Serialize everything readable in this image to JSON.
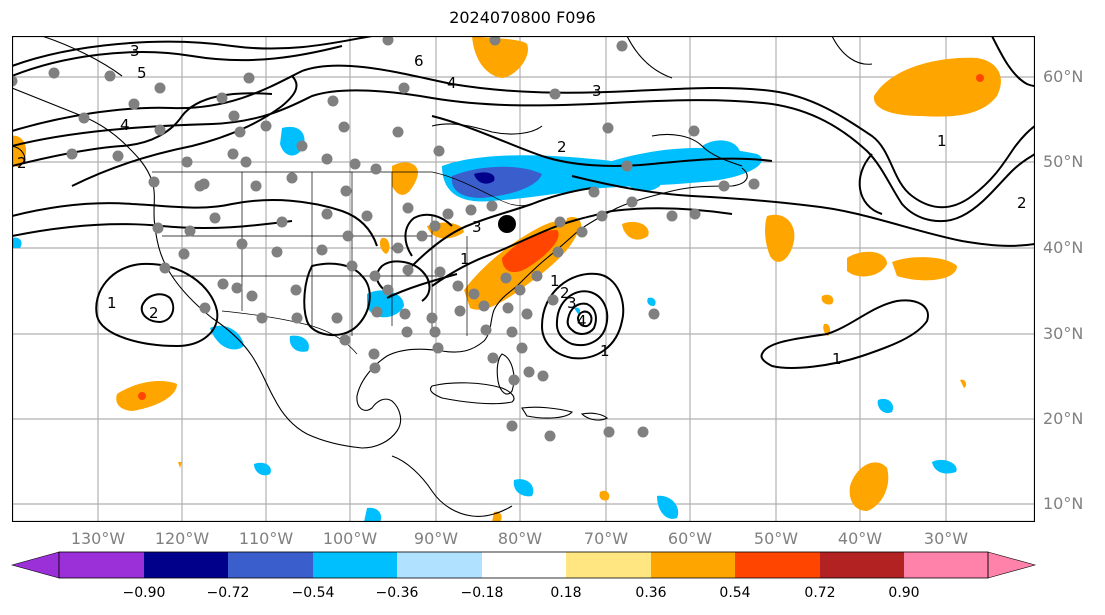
{
  "title": "2024070800 F096",
  "lat_labels": [
    "60°N",
    "50°N",
    "40°N",
    "30°N",
    "20°N",
    "10°N"
  ],
  "lon_labels": [
    "130°W",
    "120°W",
    "110°W",
    "100°W",
    "90°W",
    "80°W",
    "70°W",
    "60°W",
    "50°W",
    "40°W",
    "30°W"
  ],
  "contour_labels": [
    "3",
    "5",
    "6",
    "4",
    "3",
    "2",
    "4",
    "2",
    "1",
    "1",
    "2",
    "3",
    "1",
    "2",
    "3",
    "4",
    "1",
    "1",
    "1",
    "2"
  ],
  "colorbar": {
    "ticks": [
      "−0.90",
      "−0.72",
      "−0.54",
      "−0.36",
      "−0.18",
      "0.18",
      "0.36",
      "0.54",
      "0.72",
      "0.90"
    ],
    "colors": [
      "#9b30d8",
      "#00008b",
      "#3a5fcd",
      "#00bfff",
      "#b0e2ff",
      "#ffffff",
      "#ffe680",
      "#ffa500",
      "#ff4500",
      "#b22222",
      "#ff82ab",
      "#ff82ab"
    ]
  },
  "colors": {
    "grid": "#b0b0b0",
    "station": "#808080",
    "contour": "#000000",
    "coast": "#000000"
  }
}
